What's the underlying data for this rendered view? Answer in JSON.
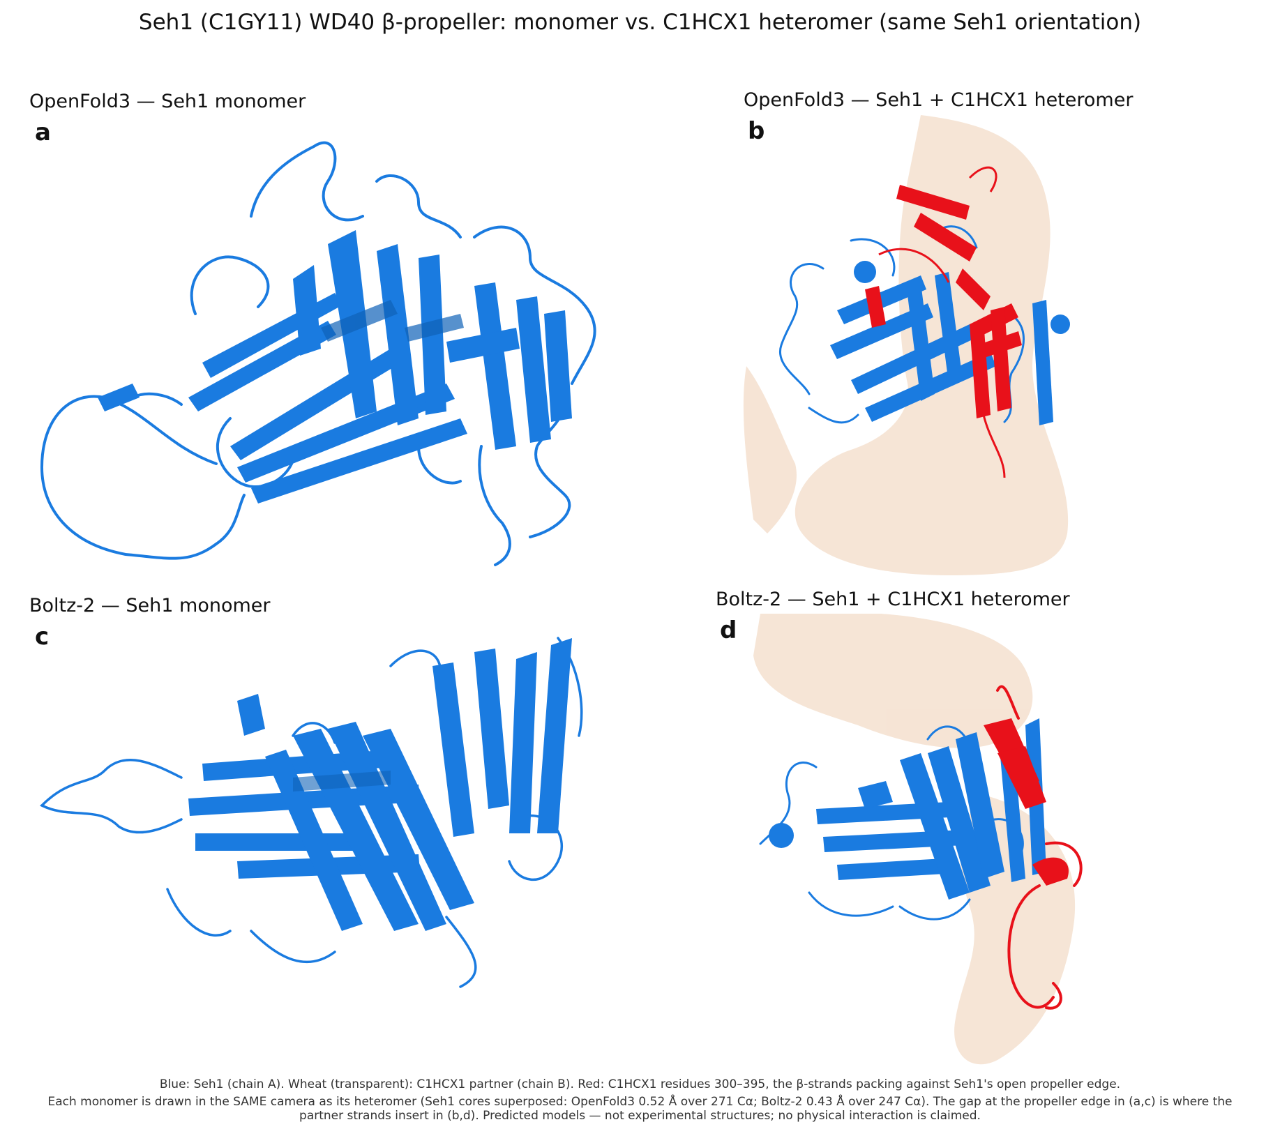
{
  "title": "Seh1 (C1GY11) WD40 β-propeller: monomer vs. C1HCX1 heteromer (same Seh1 orientation)",
  "panels": [
    {
      "letter": "a",
      "title": "OpenFold3 — Seh1 monomer"
    },
    {
      "letter": "b",
      "title": "OpenFold3 — Seh1 + C1HCX1 heteromer"
    },
    {
      "letter": "c",
      "title": "Boltz-2 — Seh1 monomer"
    },
    {
      "letter": "d",
      "title": "Boltz-2 — Seh1 + C1HCX1 heteromer"
    }
  ],
  "caption": {
    "line1": "Blue: Seh1 (chain A). Wheat (transparent): C1HCX1 partner (chain B). Red: C1HCX1 residues 300–395, the β-strands packing against Seh1's open propeller edge.",
    "line2": "Each monomer is drawn in the SAME camera as its heteromer (Seh1 cores superposed: OpenFold3 0.52 Å over 271 Cα; Boltz-2 0.43 Å over 247 Cα). The gap at the propeller edge in (a,c) is where the",
    "line3": "partner strands insert in (b,d). Predicted models — not experimental structures; no physical interaction is claimed."
  },
  "colors": {
    "seh1": "#1a7be0",
    "partner_wheat": "#f3dcc8",
    "partner_red": "#e8111a"
  }
}
